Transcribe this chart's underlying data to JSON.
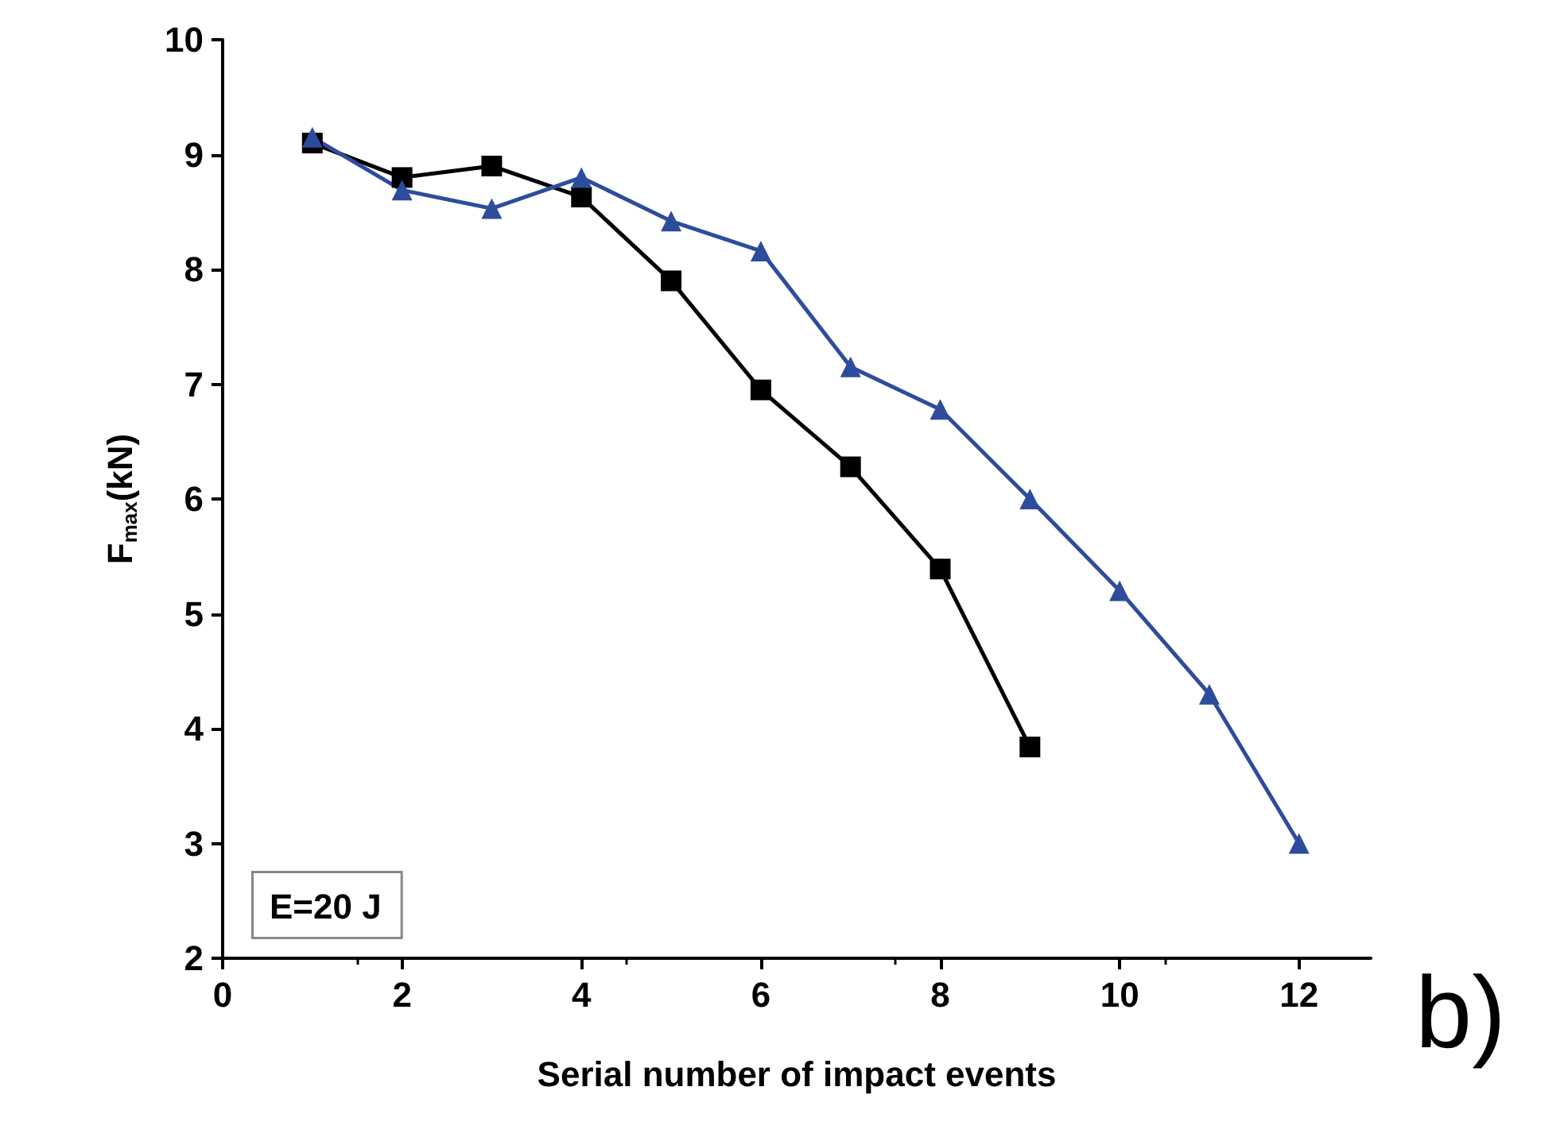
{
  "chart_data": {
    "type": "line",
    "xlabel": "Serial number of impact events",
    "ylabel": "F$_{max}$(kN)",
    "annotations": [
      "E=20 J",
      "b)"
    ],
    "xlim": [
      0,
      12.8
    ],
    "xticks": [
      0,
      2,
      4,
      6,
      8,
      10,
      12
    ],
    "ylim": [
      2,
      10
    ],
    "yticks": [
      2,
      3,
      4,
      5,
      6,
      7,
      8,
      9,
      10
    ],
    "grid": false,
    "line_style": "solid",
    "series": [
      {
        "color": "#000000",
        "marker": "square",
        "x": [
          1,
          2,
          3,
          4,
          5,
          6,
          7,
          8,
          9
        ],
        "values": [
          9.1,
          8.8,
          8.9,
          8.63,
          7.9,
          6.95,
          6.28,
          5.39,
          3.84
        ]
      },
      {
        "color": "#2e4c9c",
        "marker": "triangle",
        "x": [
          1,
          2,
          3,
          4,
          5,
          6,
          7,
          8,
          9,
          10,
          11,
          12
        ],
        "values": [
          9.15,
          8.69,
          8.53,
          8.8,
          8.42,
          8.16,
          7.15,
          6.78,
          6.0,
          5.2,
          4.3,
          3.0
        ]
      }
    ]
  }
}
